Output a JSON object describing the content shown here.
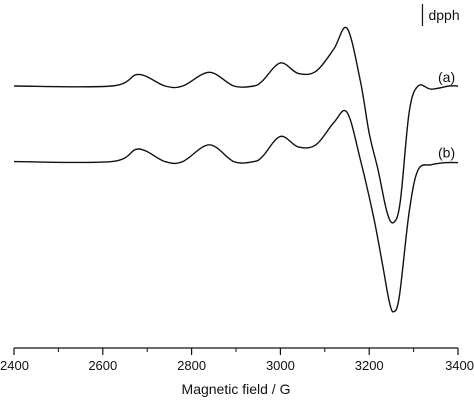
{
  "chart_data": {
    "type": "line",
    "title": "",
    "xlabel": "Magnetic field / G",
    "ylabel": "",
    "xlim": [
      2400,
      3400
    ],
    "x_ticks": [
      2400,
      2600,
      2800,
      3000,
      3200,
      3400
    ],
    "x_tick_labels": [
      "2400",
      "2600",
      "2800",
      "3000",
      "3200",
      "3400"
    ],
    "x_minor_ticks": [
      2500,
      2700,
      2900,
      3100,
      3300
    ],
    "y_axis_visible": false,
    "grid": false,
    "reference_marker": {
      "label": "dpph",
      "x": 3320
    },
    "series": [
      {
        "name": "(a)",
        "label_x": 3355,
        "baseline": 0,
        "points": [
          [
            2400,
            0
          ],
          [
            2620,
            0
          ],
          [
            2680,
            11
          ],
          [
            2740,
            0
          ],
          [
            2780,
            0
          ],
          [
            2840,
            13
          ],
          [
            2895,
            0
          ],
          [
            2940,
            0
          ],
          [
            2960,
            5
          ],
          [
            3000,
            22
          ],
          [
            3040,
            12
          ],
          [
            3080,
            14
          ],
          [
            3120,
            35
          ],
          [
            3150,
            55
          ],
          [
            3180,
            5
          ],
          [
            3200,
            -45
          ],
          [
            3220,
            -80
          ],
          [
            3240,
            -120
          ],
          [
            3255,
            -130
          ],
          [
            3270,
            -110
          ],
          [
            3290,
            -25
          ],
          [
            3310,
            0
          ],
          [
            3340,
            -3
          ],
          [
            3380,
            0
          ],
          [
            3400,
            0
          ]
        ]
      },
      {
        "name": "(b)",
        "label_x": 3355,
        "baseline": -72,
        "points": [
          [
            2400,
            -72
          ],
          [
            2620,
            -72
          ],
          [
            2680,
            -60
          ],
          [
            2740,
            -72
          ],
          [
            2780,
            -72
          ],
          [
            2840,
            -56
          ],
          [
            2895,
            -72
          ],
          [
            2940,
            -72
          ],
          [
            2960,
            -67
          ],
          [
            3000,
            -48
          ],
          [
            3040,
            -58
          ],
          [
            3080,
            -56
          ],
          [
            3120,
            -35
          ],
          [
            3150,
            -25
          ],
          [
            3180,
            -70
          ],
          [
            3210,
            -125
          ],
          [
            3230,
            -170
          ],
          [
            3245,
            -205
          ],
          [
            3255,
            -215
          ],
          [
            3268,
            -200
          ],
          [
            3290,
            -120
          ],
          [
            3310,
            -80
          ],
          [
            3340,
            -75
          ],
          [
            3370,
            -73
          ],
          [
            3400,
            -73
          ]
        ]
      }
    ]
  }
}
